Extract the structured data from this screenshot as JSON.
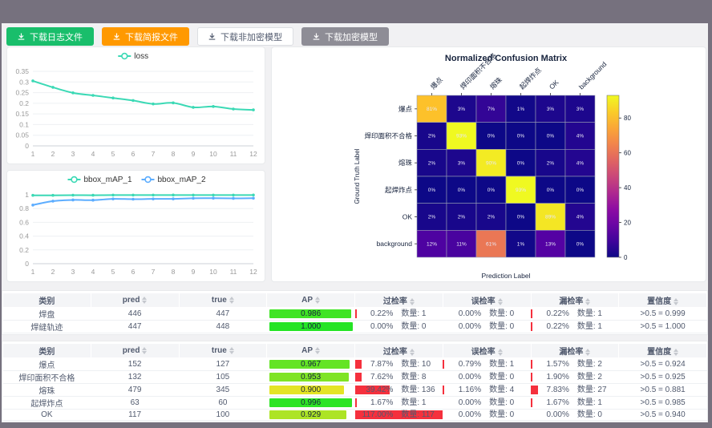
{
  "frame": {
    "chrome_color": "#76717e",
    "content_bg": "#f1f1f3"
  },
  "toolbar": {
    "buttons": [
      {
        "label": "下载日志文件",
        "variant": "green"
      },
      {
        "label": "下载简报文件",
        "variant": "orange"
      },
      {
        "label": "下载非加密模型",
        "variant": "white"
      },
      {
        "label": "下载加密模型",
        "variant": "gray"
      }
    ]
  },
  "chart_data": [
    {
      "type": "line",
      "name": "loss-chart",
      "title": "",
      "legend_position": "top",
      "x": [
        1,
        2,
        3,
        4,
        5,
        6,
        7,
        8,
        9,
        10,
        11,
        12
      ],
      "series": [
        {
          "name": "loss",
          "color": "#3bd9b5",
          "values": [
            0.305,
            0.275,
            0.249,
            0.237,
            0.225,
            0.213,
            0.197,
            0.202,
            0.181,
            0.185,
            0.173,
            0.169
          ]
        }
      ],
      "ylim": [
        0,
        0.35
      ],
      "yticks": [
        0,
        0.05,
        0.1,
        0.15,
        0.2,
        0.25,
        0.3,
        0.35
      ],
      "grid": true
    },
    {
      "type": "line",
      "name": "bbox-map-chart",
      "title": "",
      "legend_position": "top",
      "x": [
        1,
        2,
        3,
        4,
        5,
        6,
        7,
        8,
        9,
        10,
        11,
        12
      ],
      "series": [
        {
          "name": "bbox_mAP_1",
          "color": "#3bd9b5",
          "values": [
            0.992,
            0.992,
            0.994,
            0.993,
            0.995,
            0.995,
            0.995,
            0.996,
            0.995,
            0.995,
            0.995,
            0.996
          ]
        },
        {
          "name": "bbox_mAP_2",
          "color": "#5cadff",
          "values": [
            0.851,
            0.908,
            0.925,
            0.922,
            0.94,
            0.936,
            0.94,
            0.941,
            0.949,
            0.951,
            0.948,
            0.95
          ]
        }
      ],
      "ylim": [
        0,
        1
      ],
      "yticks": [
        0,
        0.2,
        0.4,
        0.6,
        0.8,
        1
      ],
      "grid": true
    },
    {
      "type": "heatmap",
      "name": "confusion-matrix",
      "title": "Normalized Confusion Matrix",
      "xlabel": "Prediction Label",
      "ylabel": "Ground Truth Label",
      "labels": [
        "爆点",
        "焊印面积不合格",
        "熔珠",
        "起焊炸点",
        "OK",
        "background"
      ],
      "matrix_percent": [
        [
          81,
          3,
          7,
          1,
          3,
          3
        ],
        [
          2,
          93,
          0,
          0,
          0,
          4
        ],
        [
          2,
          3,
          90,
          0,
          2,
          4
        ],
        [
          0,
          0,
          0,
          93,
          0,
          0
        ],
        [
          2,
          2,
          2,
          0,
          89,
          4
        ],
        [
          12,
          11,
          61,
          1,
          13,
          0
        ]
      ],
      "colormap": "plasma",
      "vmax": 93,
      "colorbar_ticks": [
        0,
        20,
        40,
        60,
        80
      ]
    }
  ],
  "tables": {
    "headers": [
      "类别",
      "pred",
      "true",
      "AP",
      "过检率",
      "误检率",
      "漏检率",
      "置信度"
    ],
    "groups": [
      {
        "name": "table-1",
        "rows": [
          {
            "cls": "焊盘",
            "pred": "446",
            "true": "447",
            "ap": 0.986,
            "over": {
              "pct": "0.22%",
              "cnt": "数量: 1",
              "bar": 0.22
            },
            "err": {
              "pct": "0.00%",
              "cnt": "数量: 0",
              "bar": 0
            },
            "miss": {
              "pct": "0.22%",
              "cnt": "数量: 1",
              "bar": 0.22
            },
            "conf": ">0.5 = 0.999"
          },
          {
            "cls": "焊缝轨迹",
            "pred": "447",
            "true": "448",
            "ap": 1.0,
            "over": {
              "pct": "0.00%",
              "cnt": "数量: 0",
              "bar": 0
            },
            "err": {
              "pct": "0.00%",
              "cnt": "数量: 0",
              "bar": 0
            },
            "miss": {
              "pct": "0.22%",
              "cnt": "数量: 1",
              "bar": 0.22
            },
            "conf": ">0.5 = 1.000"
          }
        ]
      },
      {
        "name": "table-2",
        "rows": [
          {
            "cls": "爆点",
            "pred": "152",
            "true": "127",
            "ap": 0.967,
            "over": {
              "pct": "7.87%",
              "cnt": "数量: 10",
              "bar": 7.87
            },
            "err": {
              "pct": "0.79%",
              "cnt": "数量: 1",
              "bar": 0.79
            },
            "miss": {
              "pct": "1.57%",
              "cnt": "数量: 2",
              "bar": 1.57
            },
            "conf": ">0.5 = 0.924"
          },
          {
            "cls": "焊印面积不合格",
            "pred": "132",
            "true": "105",
            "ap": 0.953,
            "over": {
              "pct": "7.62%",
              "cnt": "数量: 8",
              "bar": 7.62
            },
            "err": {
              "pct": "0.00%",
              "cnt": "数量: 0",
              "bar": 0
            },
            "miss": {
              "pct": "1.90%",
              "cnt": "数量: 2",
              "bar": 1.9
            },
            "conf": ">0.5 = 0.925"
          },
          {
            "cls": "熔珠",
            "pred": "479",
            "true": "345",
            "ap": 0.9,
            "over": {
              "pct": "39.42%",
              "cnt": "数量: 136",
              "bar": 39.42
            },
            "err": {
              "pct": "1.16%",
              "cnt": "数量: 4",
              "bar": 1.16
            },
            "miss": {
              "pct": "7.83%",
              "cnt": "数量: 27",
              "bar": 7.83
            },
            "conf": ">0.5 = 0.881"
          },
          {
            "cls": "起焊炸点",
            "pred": "63",
            "true": "60",
            "ap": 0.996,
            "over": {
              "pct": "1.67%",
              "cnt": "数量: 1",
              "bar": 1.67
            },
            "err": {
              "pct": "0.00%",
              "cnt": "数量: 0",
              "bar": 0
            },
            "miss": {
              "pct": "1.67%",
              "cnt": "数量: 1",
              "bar": 1.67
            },
            "conf": ">0.5 = 0.985"
          },
          {
            "cls": "OK",
            "pred": "117",
            "true": "100",
            "ap": 0.929,
            "over": {
              "pct": "117.00%",
              "cnt": "数量: 117",
              "bar": 117
            },
            "err": {
              "pct": "0.00%",
              "cnt": "数量: 0",
              "bar": 0
            },
            "miss": {
              "pct": "0.00%",
              "cnt": "数量: 0",
              "bar": 0
            },
            "conf": ">0.5 = 0.940"
          }
        ]
      }
    ]
  }
}
